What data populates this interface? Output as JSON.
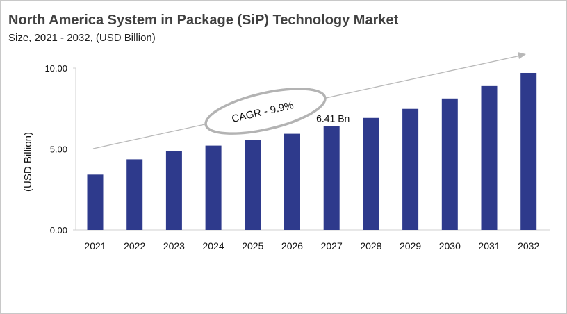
{
  "chart_data": {
    "type": "bar",
    "title": "North America System in Package (SiP) Technology Market",
    "subtitle": "Size, 2021 - 2032, (USD Billion)",
    "ylabel": "(USD Billion)",
    "xlabel": "",
    "categories": [
      "2021",
      "2022",
      "2023",
      "2024",
      "2025",
      "2026",
      "2027",
      "2028",
      "2029",
      "2030",
      "2031",
      "2032"
    ],
    "values": [
      3.42,
      4.36,
      4.87,
      5.21,
      5.56,
      5.94,
      6.41,
      6.92,
      7.48,
      8.12,
      8.89,
      9.7
    ],
    "ylim": [
      0,
      10
    ],
    "yticks": [
      "0.00",
      "5.00",
      "10.00"
    ],
    "data_labels": [
      {
        "category": "2027",
        "text": "6.41 Bn"
      }
    ],
    "annotation": "CAGR - 9.9%",
    "grid": false,
    "bar_color": "#2e3a8c"
  }
}
